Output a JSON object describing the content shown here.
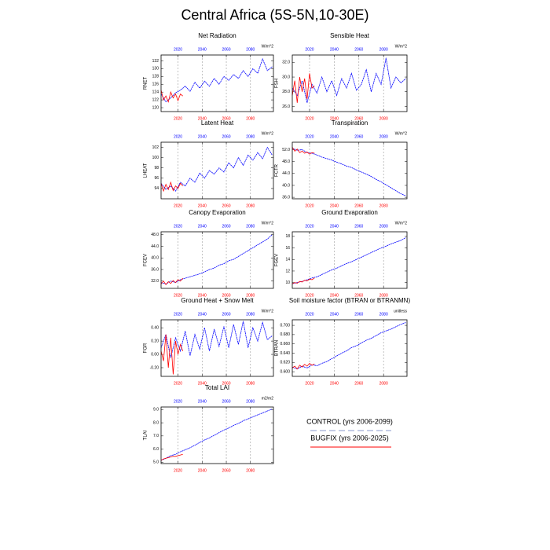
{
  "title": "Central Africa (5S-5N,10-30E)",
  "legend": [
    {
      "name": "CONTROL (yrs 2006-2099)",
      "color": "#8899cc"
    },
    {
      "name": "BUGFIX (yrs 2006-2025)",
      "color": "#ff0000"
    }
  ],
  "chart_data": [
    {
      "type": "line",
      "title": "Net Radiation",
      "ylabel": "RNET",
      "units": "W/m^2",
      "xlim": [
        2006,
        2099
      ],
      "xticks": [
        2020,
        2040,
        2060,
        2080
      ],
      "ylim": [
        119,
        133.5
      ],
      "yticks": [
        120,
        122,
        124,
        126,
        128,
        130,
        132
      ],
      "grid": true,
      "series": [
        {
          "color": "#0000ff",
          "x": [
            2006,
            2010,
            2014,
            2018,
            2022,
            2026,
            2030,
            2034,
            2038,
            2042,
            2046,
            2050,
            2054,
            2058,
            2062,
            2066,
            2070,
            2074,
            2078,
            2082,
            2086,
            2090,
            2094,
            2098
          ],
          "values": [
            123.5,
            121.5,
            122.5,
            123.8,
            124.5,
            125.5,
            124.2,
            126.5,
            125.0,
            126.8,
            125.5,
            127.5,
            126.0,
            128.0,
            127.0,
            128.5,
            127.5,
            129.5,
            128.0,
            130.0,
            128.8,
            132.5,
            129.5,
            130.5
          ]
        },
        {
          "color": "#ff0000",
          "x": [
            2006,
            2008,
            2010,
            2012,
            2014,
            2016,
            2018,
            2020,
            2022,
            2024
          ],
          "values": [
            124.5,
            122.0,
            123.0,
            121.5,
            124.0,
            122.5,
            123.5,
            121.8,
            123.5,
            123.0
          ]
        }
      ]
    },
    {
      "type": "line",
      "title": "Sensible Heat",
      "ylabel": "FSH",
      "units": "W/m^2",
      "xlim": [
        2006,
        2099
      ],
      "xticks": [
        2020,
        2040,
        2060,
        2080
      ],
      "ylim": [
        25.3,
        33
      ],
      "yticks": [
        {
          "value": 26,
          "label": "26.0"
        },
        {
          "value": 28,
          "label": "28.0"
        },
        {
          "value": 30,
          "label": "30.0"
        },
        {
          "value": 32,
          "label": "32.0"
        }
      ],
      "grid": true,
      "series": [
        {
          "color": "#0000ff",
          "x": [
            2006,
            2010,
            2014,
            2018,
            2022,
            2026,
            2030,
            2034,
            2038,
            2042,
            2046,
            2050,
            2054,
            2058,
            2062,
            2066,
            2070,
            2074,
            2078,
            2082,
            2086,
            2090,
            2094,
            2098
          ],
          "values": [
            28.5,
            27.5,
            29.5,
            26.5,
            29.0,
            27.8,
            30.0,
            28.0,
            29.5,
            27.5,
            29.8,
            28.5,
            30.5,
            28.2,
            29.0,
            31.0,
            28.0,
            30.5,
            29.0,
            32.6,
            28.5,
            30.0,
            29.2,
            29.8
          ]
        },
        {
          "color": "#ff0000",
          "x": [
            2006,
            2008,
            2010,
            2012,
            2014,
            2016,
            2018,
            2020,
            2022,
            2024
          ],
          "values": [
            27.5,
            29.5,
            26.5,
            30.0,
            28.0,
            29.8,
            27.0,
            30.5,
            28.5,
            28.8
          ]
        }
      ]
    },
    {
      "type": "line",
      "title": "Latent Heat",
      "ylabel": "LHEAT",
      "units": "W/m^2",
      "xlim": [
        2006,
        2099
      ],
      "xticks": [
        2020,
        2040,
        2060,
        2080
      ],
      "ylim": [
        92,
        103
      ],
      "yticks": [
        94,
        96,
        98,
        100,
        102
      ],
      "grid": true,
      "series": [
        {
          "color": "#0000ff",
          "x": [
            2006,
            2010,
            2014,
            2018,
            2022,
            2026,
            2030,
            2034,
            2038,
            2042,
            2046,
            2050,
            2054,
            2058,
            2062,
            2066,
            2070,
            2074,
            2078,
            2082,
            2086,
            2090,
            2094,
            2098
          ],
          "values": [
            95.0,
            93.8,
            94.5,
            93.5,
            95.2,
            94.5,
            96.0,
            95.2,
            97.0,
            96.0,
            97.5,
            96.8,
            98.0,
            97.2,
            99.0,
            98.0,
            100.0,
            98.5,
            100.5,
            99.5,
            101.0,
            99.8,
            102.0,
            100.5
          ]
        },
        {
          "color": "#ff0000",
          "x": [
            2006,
            2008,
            2010,
            2012,
            2014,
            2016,
            2018,
            2020,
            2022,
            2024
          ],
          "values": [
            95.0,
            93.5,
            94.8,
            93.8,
            95.2,
            93.6,
            94.5,
            94.0,
            95.0,
            94.5
          ]
        }
      ]
    },
    {
      "type": "line",
      "title": "Transpiration",
      "ylabel": "FCTR",
      "units": "W/m^2",
      "xlim": [
        2006,
        2099
      ],
      "xticks": [
        2020,
        2040,
        2060,
        2080
      ],
      "ylim": [
        35.5,
        54.5
      ],
      "yticks": [
        {
          "value": 36,
          "label": "36.0"
        },
        {
          "value": 40,
          "label": "40.0"
        },
        {
          "value": 44,
          "label": "44.0"
        },
        {
          "value": 48,
          "label": "48.0"
        },
        {
          "value": 52,
          "label": "52.0"
        }
      ],
      "grid": true,
      "series": [
        {
          "color": "#0000ff",
          "x": [
            2006,
            2010,
            2014,
            2018,
            2022,
            2026,
            2030,
            2034,
            2038,
            2042,
            2046,
            2050,
            2054,
            2058,
            2062,
            2066,
            2070,
            2074,
            2078,
            2082,
            2086,
            2090,
            2094,
            2098
          ],
          "values": [
            52.5,
            51.8,
            52.0,
            51.0,
            50.8,
            50.2,
            49.5,
            49.0,
            48.5,
            47.8,
            47.2,
            46.5,
            46.0,
            45.2,
            44.5,
            43.8,
            43.0,
            42.0,
            41.2,
            40.2,
            39.2,
            38.2,
            37.2,
            36.5
          ]
        },
        {
          "color": "#ff0000",
          "x": [
            2006,
            2008,
            2010,
            2012,
            2014,
            2016,
            2018,
            2020,
            2022,
            2024
          ],
          "values": [
            52.8,
            51.5,
            52.2,
            51.0,
            51.5,
            50.8,
            51.2,
            50.5,
            51.0,
            50.8
          ]
        }
      ]
    },
    {
      "type": "line",
      "title": "Canopy Evaporation",
      "ylabel": "FCEV",
      "units": "W/m^2",
      "xlim": [
        2006,
        2099
      ],
      "xticks": [
        2020,
        2040,
        2060,
        2080
      ],
      "ylim": [
        29.5,
        49
      ],
      "yticks": [
        {
          "value": 32,
          "label": "32.0"
        },
        {
          "value": 36,
          "label": "36.0"
        },
        {
          "value": 40,
          "label": "40.0"
        },
        {
          "value": 44,
          "label": "44.0"
        },
        {
          "value": 48,
          "label": "48.0"
        }
      ],
      "grid": true,
      "series": [
        {
          "color": "#0000ff",
          "x": [
            2006,
            2010,
            2014,
            2018,
            2022,
            2026,
            2030,
            2034,
            2038,
            2042,
            2046,
            2050,
            2054,
            2058,
            2062,
            2066,
            2070,
            2074,
            2078,
            2082,
            2086,
            2090,
            2094,
            2098
          ],
          "values": [
            31.5,
            31.0,
            32.0,
            31.5,
            32.5,
            33.0,
            33.5,
            34.0,
            34.5,
            35.2,
            36.0,
            36.5,
            37.5,
            38.0,
            39.0,
            39.5,
            40.5,
            41.5,
            42.5,
            43.5,
            44.5,
            45.5,
            46.5,
            48.0
          ]
        },
        {
          "color": "#ff0000",
          "x": [
            2006,
            2008,
            2010,
            2012,
            2014,
            2016,
            2018,
            2020,
            2022,
            2024
          ],
          "values": [
            31.0,
            32.0,
            30.8,
            31.8,
            31.2,
            32.2,
            31.5,
            32.5,
            32.0,
            33.0
          ]
        }
      ]
    },
    {
      "type": "line",
      "title": "Ground Evaporation",
      "ylabel": "FGEV",
      "units": "W/m^2",
      "xlim": [
        2006,
        2099
      ],
      "xticks": [
        2020,
        2040,
        2060,
        2080
      ],
      "ylim": [
        9,
        18.8
      ],
      "yticks": [
        10,
        12,
        14,
        16,
        18
      ],
      "grid": true,
      "series": [
        {
          "color": "#0000ff",
          "x": [
            2006,
            2010,
            2014,
            2018,
            2022,
            2026,
            2030,
            2034,
            2038,
            2042,
            2046,
            2050,
            2054,
            2058,
            2062,
            2066,
            2070,
            2074,
            2078,
            2082,
            2086,
            2090,
            2094,
            2098
          ],
          "values": [
            9.8,
            10.0,
            10.2,
            10.5,
            10.8,
            11.0,
            11.4,
            11.8,
            12.2,
            12.5,
            12.9,
            13.3,
            13.6,
            14.0,
            14.4,
            14.8,
            15.2,
            15.6,
            16.0,
            16.3,
            16.7,
            17.0,
            17.3,
            17.8
          ]
        },
        {
          "color": "#ff0000",
          "x": [
            2006,
            2008,
            2010,
            2012,
            2014,
            2016,
            2018,
            2020,
            2022,
            2024
          ],
          "values": [
            9.8,
            10.0,
            9.9,
            10.2,
            10.1,
            10.4,
            10.3,
            10.6,
            10.5,
            10.8
          ]
        }
      ]
    },
    {
      "type": "line",
      "title": "Ground Heat + Snow Melt",
      "ylabel": "FGR",
      "units": "W/m^2",
      "xlim": [
        2006,
        2099
      ],
      "xticks": [
        2020,
        2040,
        2060,
        2080
      ],
      "ylim": [
        -0.33,
        0.52
      ],
      "yticks": [
        {
          "value": -0.2,
          "label": "-0.20"
        },
        {
          "value": 0,
          "label": "0.00"
        },
        {
          "value": 0.2,
          "label": "0.20"
        },
        {
          "value": 0.4,
          "label": "0.40"
        }
      ],
      "grid": true,
      "series": [
        {
          "color": "#0000ff",
          "x": [
            2006,
            2010,
            2014,
            2018,
            2022,
            2026,
            2030,
            2034,
            2038,
            2042,
            2046,
            2050,
            2054,
            2058,
            2062,
            2066,
            2070,
            2074,
            2078,
            2082,
            2086,
            2090,
            2094,
            2098
          ],
          "values": [
            0.1,
            0.3,
            -0.05,
            0.25,
            0.05,
            0.35,
            -0.02,
            0.3,
            0.08,
            0.4,
            0.05,
            0.38,
            0.12,
            0.42,
            0.1,
            0.45,
            0.15,
            0.5,
            0.1,
            0.4,
            0.2,
            0.48,
            0.22,
            0.28
          ]
        },
        {
          "color": "#ff0000",
          "x": [
            2006,
            2008,
            2010,
            2012,
            2014,
            2016,
            2018,
            2020,
            2022,
            2024
          ],
          "values": [
            0.05,
            -0.1,
            0.3,
            -0.2,
            0.25,
            -0.3,
            0.2,
            0.0,
            0.15,
            0.05
          ]
        }
      ]
    },
    {
      "type": "line",
      "title": "Soil moisture factor (BTRAN or BTRANMN)",
      "ylabel": "BTRAN",
      "units": "unitless",
      "xlim": [
        2006,
        2099
      ],
      "xticks": [
        2020,
        2040,
        2060,
        2080
      ],
      "ylim": [
        0.59,
        0.712
      ],
      "yticks": [
        {
          "value": 0.6,
          "label": "0.600"
        },
        {
          "value": 0.62,
          "label": "0.620"
        },
        {
          "value": 0.64,
          "label": "0.640"
        },
        {
          "value": 0.66,
          "label": "0.660"
        },
        {
          "value": 0.68,
          "label": "0.680"
        },
        {
          "value": 0.7,
          "label": "0.700"
        }
      ],
      "grid": true,
      "series": [
        {
          "color": "#0000ff",
          "x": [
            2006,
            2010,
            2014,
            2018,
            2022,
            2026,
            2030,
            2034,
            2038,
            2042,
            2046,
            2050,
            2054,
            2058,
            2062,
            2066,
            2070,
            2074,
            2078,
            2082,
            2086,
            2090,
            2094,
            2098
          ],
          "values": [
            0.61,
            0.606,
            0.612,
            0.608,
            0.615,
            0.613,
            0.618,
            0.622,
            0.628,
            0.634,
            0.64,
            0.645,
            0.652,
            0.656,
            0.662,
            0.668,
            0.672,
            0.678,
            0.684,
            0.688,
            0.692,
            0.697,
            0.702,
            0.706
          ]
        },
        {
          "color": "#ff0000",
          "x": [
            2006,
            2008,
            2010,
            2012,
            2014,
            2016,
            2018,
            2020,
            2022,
            2024
          ],
          "values": [
            0.608,
            0.612,
            0.606,
            0.614,
            0.61,
            0.616,
            0.612,
            0.618,
            0.614,
            0.617
          ]
        }
      ]
    },
    {
      "type": "line",
      "title": "Total LAI",
      "ylabel": "TLAI",
      "units": "m2/m2",
      "xlim": [
        2006,
        2099
      ],
      "xticks": [
        2020,
        2040,
        2060,
        2080
      ],
      "ylim": [
        4.9,
        9.2
      ],
      "yticks": [
        {
          "value": 5,
          "label": "5.0"
        },
        {
          "value": 6,
          "label": "6.0"
        },
        {
          "value": 7,
          "label": "7.0"
        },
        {
          "value": 8,
          "label": "8.0"
        },
        {
          "value": 9,
          "label": "9.0"
        }
      ],
      "grid": true,
      "series": [
        {
          "color": "#0000ff",
          "x": [
            2006,
            2010,
            2014,
            2018,
            2022,
            2026,
            2030,
            2034,
            2038,
            2042,
            2046,
            2050,
            2054,
            2058,
            2062,
            2066,
            2070,
            2074,
            2078,
            2082,
            2086,
            2090,
            2094,
            2098
          ],
          "values": [
            5.15,
            5.3,
            5.5,
            5.6,
            5.8,
            5.95,
            6.1,
            6.3,
            6.5,
            6.7,
            6.85,
            7.05,
            7.25,
            7.45,
            7.6,
            7.8,
            7.95,
            8.15,
            8.3,
            8.45,
            8.6,
            8.75,
            8.9,
            9.05
          ]
        },
        {
          "color": "#ff0000",
          "x": [
            2006,
            2008,
            2010,
            2012,
            2014,
            2016,
            2018,
            2020,
            2022,
            2024
          ],
          "values": [
            5.15,
            5.25,
            5.3,
            5.35,
            5.4,
            5.45,
            5.45,
            5.5,
            5.55,
            5.6
          ]
        }
      ]
    }
  ]
}
